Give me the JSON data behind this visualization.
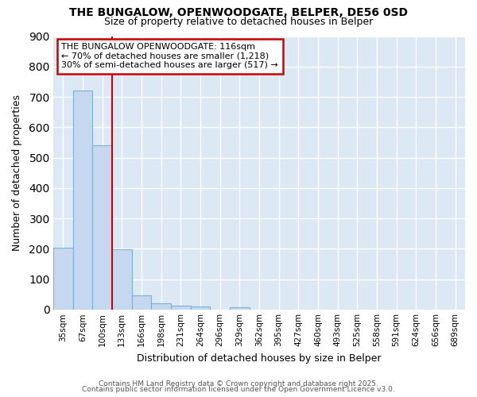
{
  "title1": "THE BUNGALOW, OPENWOODGATE, BELPER, DE56 0SD",
  "title2": "Size of property relative to detached houses in Belper",
  "xlabel": "Distribution of detached houses by size in Belper",
  "ylabel": "Number of detached properties",
  "categories": [
    "35sqm",
    "67sqm",
    "100sqm",
    "133sqm",
    "166sqm",
    "198sqm",
    "231sqm",
    "264sqm",
    "296sqm",
    "329sqm",
    "362sqm",
    "395sqm",
    "427sqm",
    "460sqm",
    "493sqm",
    "525sqm",
    "558sqm",
    "591sqm",
    "624sqm",
    "656sqm",
    "689sqm"
  ],
  "values": [
    203,
    720,
    540,
    197,
    47,
    20,
    13,
    9,
    0,
    8,
    0,
    0,
    0,
    0,
    0,
    0,
    0,
    0,
    0,
    0,
    0
  ],
  "bar_color": "#c5d8f0",
  "bar_edge_color": "#7bafd4",
  "annotation_lines": [
    "THE BUNGALOW OPENWOODGATE: 116sqm",
    "← 70% of detached houses are smaller (1,218)",
    "30% of semi-detached houses are larger (517) →"
  ],
  "annotation_box_color": "#ffffff",
  "annotation_box_edge": "#cc0000",
  "fig_bg_color": "#ffffff",
  "plot_bg_color": "#dde8f5",
  "grid_color": "#ffffff",
  "red_line_color": "#cc0000",
  "ylim": [
    0,
    900
  ],
  "yticks": [
    0,
    100,
    200,
    300,
    400,
    500,
    600,
    700,
    800,
    900
  ],
  "footer1": "Contains HM Land Registry data © Crown copyright and database right 2025.",
  "footer2": "Contains public sector information licensed under the Open Government Licence v3.0."
}
